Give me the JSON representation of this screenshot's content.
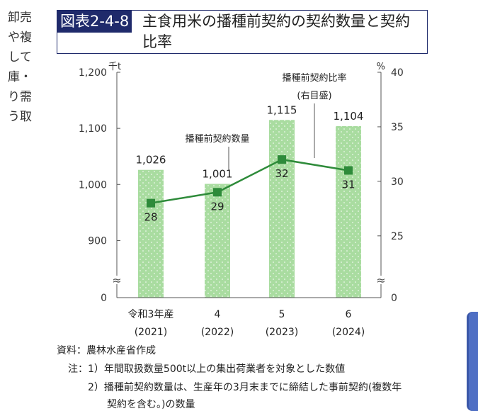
{
  "body_text": [
    "卸売",
    "や複",
    "して",
    "庫・",
    "り需",
    "う取"
  ],
  "title": {
    "tag": "図表2-4-8",
    "text": "主食用米の播種前契約の契約数量と契約比率"
  },
  "chart_data": {
    "type": "bar+line",
    "categories": [
      {
        "label": "令和3年産",
        "sub": "(2021)"
      },
      {
        "label": "4",
        "sub": "(2022)"
      },
      {
        "label": "5",
        "sub": "(2023)"
      },
      {
        "label": "6",
        "sub": "(2024)"
      }
    ],
    "series": [
      {
        "name": "播種前契約数量",
        "type": "bar",
        "axis": "left",
        "values": [
          1026,
          1001,
          1115,
          1104
        ],
        "color": "#a9dca0"
      },
      {
        "name": "播種前契約比率",
        "name_note": "(右目盛)",
        "type": "line",
        "axis": "right",
        "values": [
          28,
          29,
          32,
          31
        ],
        "color": "#2e8b3a"
      }
    ],
    "bar_labels": [
      "1,026",
      "1,001",
      "1,115",
      "1,104"
    ],
    "line_labels": [
      "28",
      "29",
      "32",
      "31"
    ],
    "left_axis": {
      "unit": "千t",
      "ticks": [
        {
          "v": 1200,
          "label": "1,200"
        },
        {
          "v": 1100,
          "label": "1,100"
        },
        {
          "v": 1000,
          "label": "1,000"
        },
        {
          "v": 900,
          "label": "900"
        },
        {
          "v": 0,
          "label": "0"
        }
      ],
      "range": [
        850,
        1200
      ],
      "broken": true
    },
    "right_axis": {
      "unit": "%",
      "ticks": [
        {
          "v": 40,
          "label": "40"
        },
        {
          "v": 35,
          "label": "35"
        },
        {
          "v": 30,
          "label": "30"
        },
        {
          "v": 25,
          "label": "25"
        },
        {
          "v": 0,
          "label": "0"
        }
      ],
      "range": [
        22,
        40
      ],
      "broken": true
    },
    "break_symbol": "≈"
  },
  "notes": {
    "source": "資料：農林水産省作成",
    "note1": "注：1）年間取扱数量500t以上の集出荷業者を対象とした数値",
    "note2": "2）播種前契約数量は、生産年の3月末までに締結した事前契約(複数年",
    "note3": "契約を含む。)の数量"
  },
  "colors": {
    "title_bg": "#1f2a6b",
    "bar": "#a9dca0",
    "line": "#2e8b3a",
    "tab": "#4f6fc4"
  }
}
